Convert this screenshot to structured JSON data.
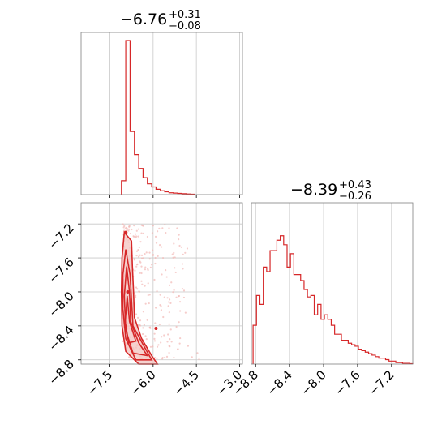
{
  "colors": {
    "line": "#d62728",
    "fill": "#f4c7c3",
    "scatter": "#f2b8b5",
    "grid": "#c8c8c8",
    "frame": "#808080"
  },
  "chart_data": [
    {
      "panel": "top-left",
      "type": "histogram",
      "title": {
        "median": "−6.76",
        "plus": "+0.31",
        "minus": "−0.08"
      },
      "xlim": [
        -8.5,
        -2.9
      ],
      "grid_x": [
        -7.5,
        -6.0,
        -4.5,
        -3.0
      ],
      "bins": [
        {
          "x0": -7.1,
          "x1": -6.95,
          "v": 0.09
        },
        {
          "x0": -6.95,
          "x1": -6.8,
          "v": 1.0
        },
        {
          "x0": -6.8,
          "x1": -6.65,
          "v": 0.41
        },
        {
          "x0": -6.65,
          "x1": -6.5,
          "v": 0.26
        },
        {
          "x0": -6.5,
          "x1": -6.35,
          "v": 0.17
        },
        {
          "x0": -6.35,
          "x1": -6.2,
          "v": 0.11
        },
        {
          "x0": -6.2,
          "x1": -6.05,
          "v": 0.07
        },
        {
          "x0": -6.05,
          "x1": -5.9,
          "v": 0.05
        },
        {
          "x0": -5.9,
          "x1": -5.75,
          "v": 0.035
        },
        {
          "x0": -5.75,
          "x1": -5.6,
          "v": 0.025
        },
        {
          "x0": -5.6,
          "x1": -5.45,
          "v": 0.018
        },
        {
          "x0": -5.45,
          "x1": -5.3,
          "v": 0.012
        },
        {
          "x0": -5.3,
          "x1": -5.15,
          "v": 0.01
        },
        {
          "x0": -5.15,
          "x1": -5.0,
          "v": 0.008
        },
        {
          "x0": -5.0,
          "x1": -4.85,
          "v": 0.006
        },
        {
          "x0": -4.85,
          "x1": -4.7,
          "v": 0.004
        },
        {
          "x0": -4.7,
          "x1": -4.55,
          "v": 0.003
        }
      ]
    },
    {
      "panel": "bottom-left",
      "type": "scatter-contour",
      "xlim": [
        -8.5,
        -2.9
      ],
      "ylim": [
        -8.85,
        -6.95
      ],
      "x_ticks": [
        "−7.5",
        "−6.0",
        "−4.5",
        "−3.0"
      ],
      "x_tick_values": [
        -7.5,
        -6.0,
        -4.5,
        -3.0
      ],
      "y_ticks": [
        "−7.2",
        "−7.6",
        "−8.0",
        "−8.4",
        "−8.8"
      ],
      "y_tick_values": [
        -7.2,
        -7.6,
        -8.0,
        -8.4,
        -8.8
      ],
      "contour_outer": [
        [
          -7.0,
          -7.3
        ],
        [
          -6.75,
          -7.4
        ],
        [
          -6.72,
          -7.7
        ],
        [
          -6.68,
          -8.0
        ],
        [
          -6.65,
          -8.3
        ],
        [
          -6.4,
          -8.55
        ],
        [
          -6.05,
          -8.75
        ],
        [
          -5.85,
          -8.85
        ],
        [
          -6.5,
          -8.85
        ],
        [
          -6.95,
          -8.7
        ],
        [
          -7.08,
          -8.4
        ],
        [
          -7.1,
          -8.0
        ],
        [
          -7.08,
          -7.6
        ]
      ],
      "contour_mid": [
        [
          -6.95,
          -7.5
        ],
        [
          -6.8,
          -7.8
        ],
        [
          -6.75,
          -8.1
        ],
        [
          -6.7,
          -8.4
        ],
        [
          -6.3,
          -8.65
        ],
        [
          -6.05,
          -8.8
        ],
        [
          -6.6,
          -8.8
        ],
        [
          -6.95,
          -8.55
        ],
        [
          -7.05,
          -8.2
        ],
        [
          -7.05,
          -7.8
        ]
      ],
      "contour_inner": [
        [
          -6.92,
          -7.7
        ],
        [
          -6.82,
          -8.0
        ],
        [
          -6.78,
          -8.35
        ],
        [
          -6.5,
          -8.6
        ],
        [
          -6.2,
          -8.75
        ],
        [
          -6.7,
          -8.72
        ],
        [
          -6.95,
          -8.45
        ],
        [
          -7.0,
          -8.05
        ]
      ],
      "contour_core": [
        [
          -6.9,
          -8.05
        ],
        [
          -6.82,
          -8.35
        ],
        [
          -6.6,
          -8.58
        ],
        [
          -6.85,
          -8.6
        ],
        [
          -6.97,
          -8.35
        ]
      ],
      "isolated_marks": [
        [
          -6.95,
          -7.3
        ],
        [
          -5.9,
          -8.43
        ],
        [
          -6.88,
          -8.0
        ]
      ]
    },
    {
      "panel": "bottom-right",
      "type": "histogram",
      "title": {
        "median": "−8.39",
        "plus": "+0.43",
        "minus": "−0.26"
      },
      "xlim": [
        -8.85,
        -6.95
      ],
      "x_ticks": [
        "−8.8",
        "−8.4",
        "−8.0",
        "−7.6",
        "−7.2"
      ],
      "x_tick_values": [
        -8.8,
        -8.4,
        -8.0,
        -7.6,
        -7.2
      ],
      "bin_start": -8.83,
      "bin_width": 0.04,
      "values": [
        0.26,
        0.46,
        0.4,
        0.65,
        0.62,
        0.76,
        0.76,
        0.83,
        0.86,
        0.8,
        0.65,
        0.74,
        0.6,
        0.6,
        0.56,
        0.5,
        0.45,
        0.46,
        0.33,
        0.4,
        0.3,
        0.33,
        0.3,
        0.26,
        0.2,
        0.2,
        0.16,
        0.16,
        0.14,
        0.13,
        0.12,
        0.1,
        0.09,
        0.08,
        0.07,
        0.06,
        0.05,
        0.04,
        0.04,
        0.03,
        0.02,
        0.02,
        0.01,
        0.01,
        0.005,
        0.005,
        0.003,
        0.002
      ]
    }
  ]
}
